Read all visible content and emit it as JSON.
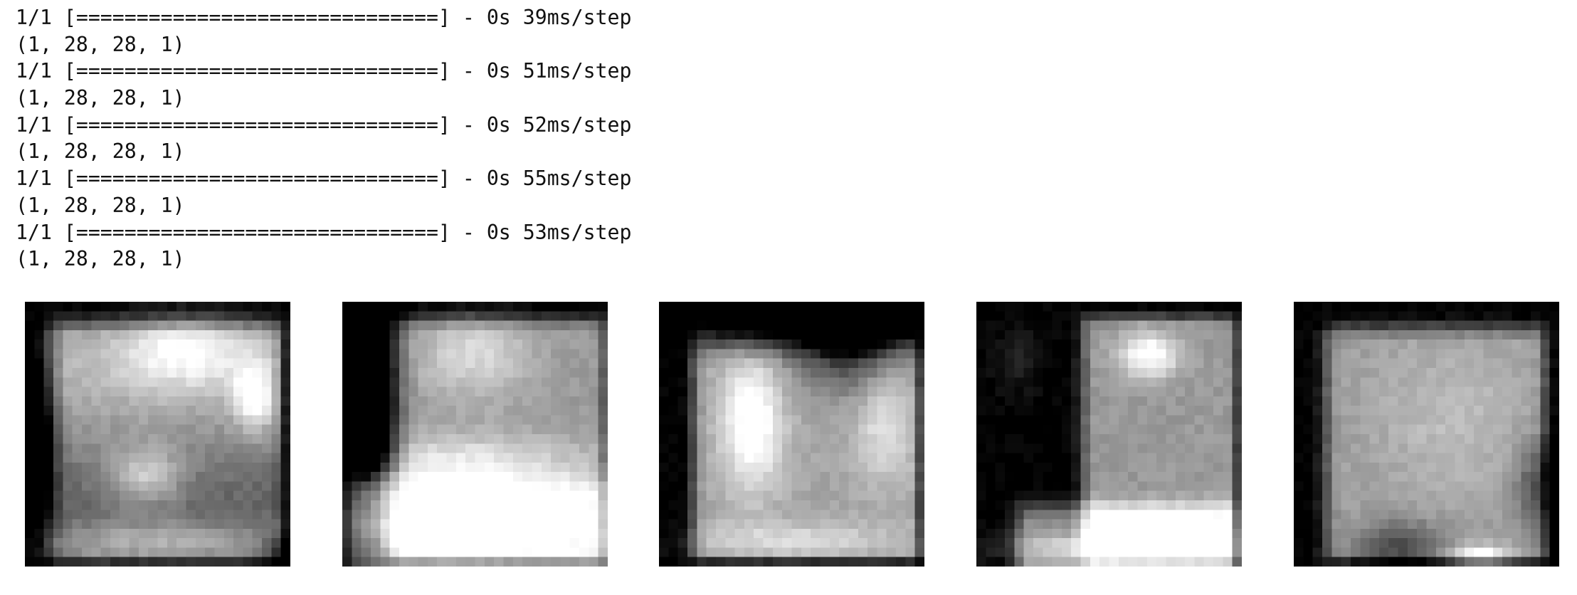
{
  "console": {
    "lines": [
      "1/1 [==============================] - 0s 39ms/step",
      "(1, 28, 28, 1)",
      "1/1 [==============================] - 0s 51ms/step",
      "(1, 28, 28, 1)",
      "1/1 [==============================] - 0s 52ms/step",
      "(1, 28, 28, 1)",
      "1/1 [==============================] - 0s 55ms/step",
      "(1, 28, 28, 1)",
      "1/1 [==============================] - 0s 53ms/step",
      "(1, 28, 28, 1)"
    ]
  },
  "images": {
    "count": 5,
    "grid": 28,
    "colormap": "grayscale",
    "descriptions": [
      "generated-image-rounded-top",
      "generated-image-boot",
      "generated-image-two-peaks",
      "generated-image-ankle-boot",
      "generated-image-tall-square"
    ]
  }
}
